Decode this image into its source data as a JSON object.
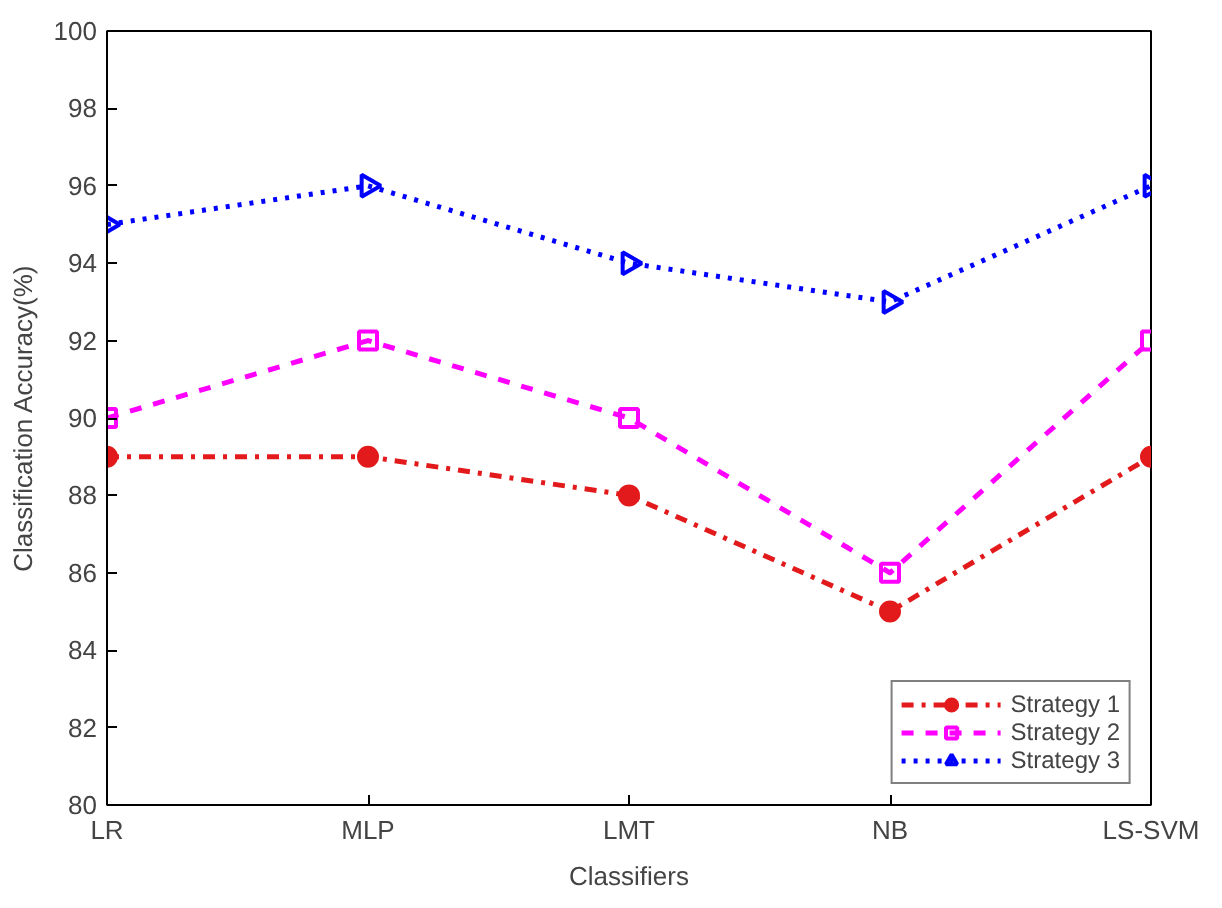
{
  "chart_data": {
    "type": "line",
    "xlabel": "Classifiers",
    "ylabel": "Classification Accuracy(%)",
    "categories": [
      "LR",
      "MLP",
      "LMT",
      "NB",
      "LS-SVM"
    ],
    "series": [
      {
        "name": "Strategy 1",
        "color": "#e31a1c",
        "values": [
          89,
          89,
          88,
          85,
          89
        ],
        "marker": "circle",
        "line_style": "dashdot"
      },
      {
        "name": "Strategy 2",
        "color": "#ff00ff",
        "values": [
          90,
          92,
          90,
          86,
          92
        ],
        "marker": "square",
        "line_style": "dashed"
      },
      {
        "name": "Strategy 3",
        "color": "#0000ff",
        "values": [
          95,
          96,
          94,
          93,
          96
        ],
        "marker": "triangle",
        "line_style": "dotted"
      }
    ],
    "ylim": [
      80,
      100
    ],
    "yticks": [
      80,
      82,
      84,
      86,
      88,
      90,
      92,
      94,
      96,
      98,
      100
    ],
    "grid": false,
    "legend": "bottom right"
  }
}
